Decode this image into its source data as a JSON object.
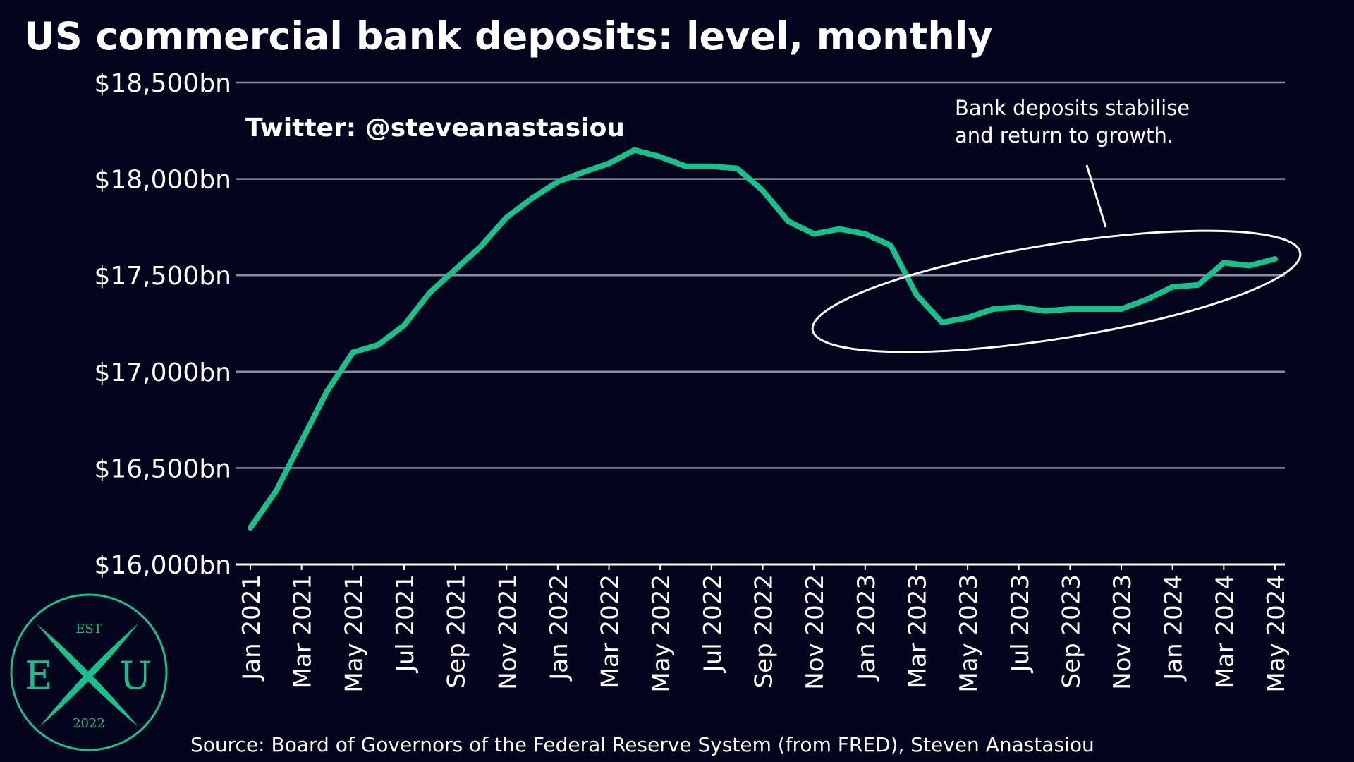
{
  "chart_data": {
    "type": "line",
    "title": "US commercial bank deposits: level, monthly",
    "xlabel": "",
    "ylabel": "",
    "ylim": [
      16000,
      18500
    ],
    "yticks": [
      16000,
      16500,
      17000,
      17500,
      18000,
      18500
    ],
    "y_tick_labels": [
      "$16,000bn",
      "$16,500bn",
      "$17,000bn",
      "$17,500bn",
      "$18,000bn",
      "$18,500bn"
    ],
    "x": [
      "Jan 2021",
      "Feb 2021",
      "Mar 2021",
      "Apr 2021",
      "May 2021",
      "Jun 2021",
      "Jul 2021",
      "Aug 2021",
      "Sep 2021",
      "Oct 2021",
      "Nov 2021",
      "Dec 2021",
      "Jan 2022",
      "Feb 2022",
      "Mar 2022",
      "Apr 2022",
      "May 2022",
      "Jun 2022",
      "Jul 2022",
      "Aug 2022",
      "Sep 2022",
      "Oct 2022",
      "Nov 2022",
      "Dec 2022",
      "Jan 2023",
      "Feb 2023",
      "Mar 2023",
      "Apr 2023",
      "May 2023",
      "Jun 2023",
      "Jul 2023",
      "Aug 2023",
      "Sep 2023",
      "Oct 2023",
      "Nov 2023",
      "Dec 2023",
      "Jan 2024",
      "Feb 2024",
      "Mar 2024",
      "Apr 2024",
      "May 2024"
    ],
    "x_tick_labels": [
      "Jan 2021",
      "Mar 2021",
      "May 2021",
      "Jul 2021",
      "Sep 2021",
      "Nov 2021",
      "Jan 2022",
      "Mar 2022",
      "May 2022",
      "Jul 2022",
      "Sep 2022",
      "Nov 2022",
      "Jan 2023",
      "Mar 2023",
      "May 2023",
      "Jul 2023",
      "Sep 2023",
      "Nov 2023",
      "Jan 2024",
      "Mar 2024",
      "May 2024"
    ],
    "series": [
      {
        "name": "",
        "color": "#19c08a",
        "values": [
          16190,
          16380,
          16640,
          16900,
          17100,
          17140,
          17240,
          17410,
          17530,
          17650,
          17800,
          17900,
          17985,
          18035,
          18080,
          18150,
          18115,
          18065,
          18065,
          18055,
          17940,
          17780,
          17715,
          17740,
          17715,
          17655,
          17400,
          17255,
          17280,
          17325,
          17335,
          17315,
          17325,
          17325,
          17325,
          17375,
          17440,
          17450,
          17565,
          17550,
          17585
        ]
      }
    ],
    "grid": true,
    "annotations": [
      {
        "lines": [
          "Bank deposits stabilise",
          "and return to growth."
        ]
      }
    ]
  },
  "watermark": "Twitter: @steveanastasiou",
  "source": "Source: Board of Governors of the Federal Reserve System (from FRED), Steven Anastasiou",
  "logo": {
    "top": "EST",
    "left": "E",
    "right": "U",
    "bottom": "2022"
  },
  "colors": {
    "background": "#03051f",
    "line": "#19c08a",
    "grid": "#8a8c9c",
    "text": "#ffffff"
  }
}
